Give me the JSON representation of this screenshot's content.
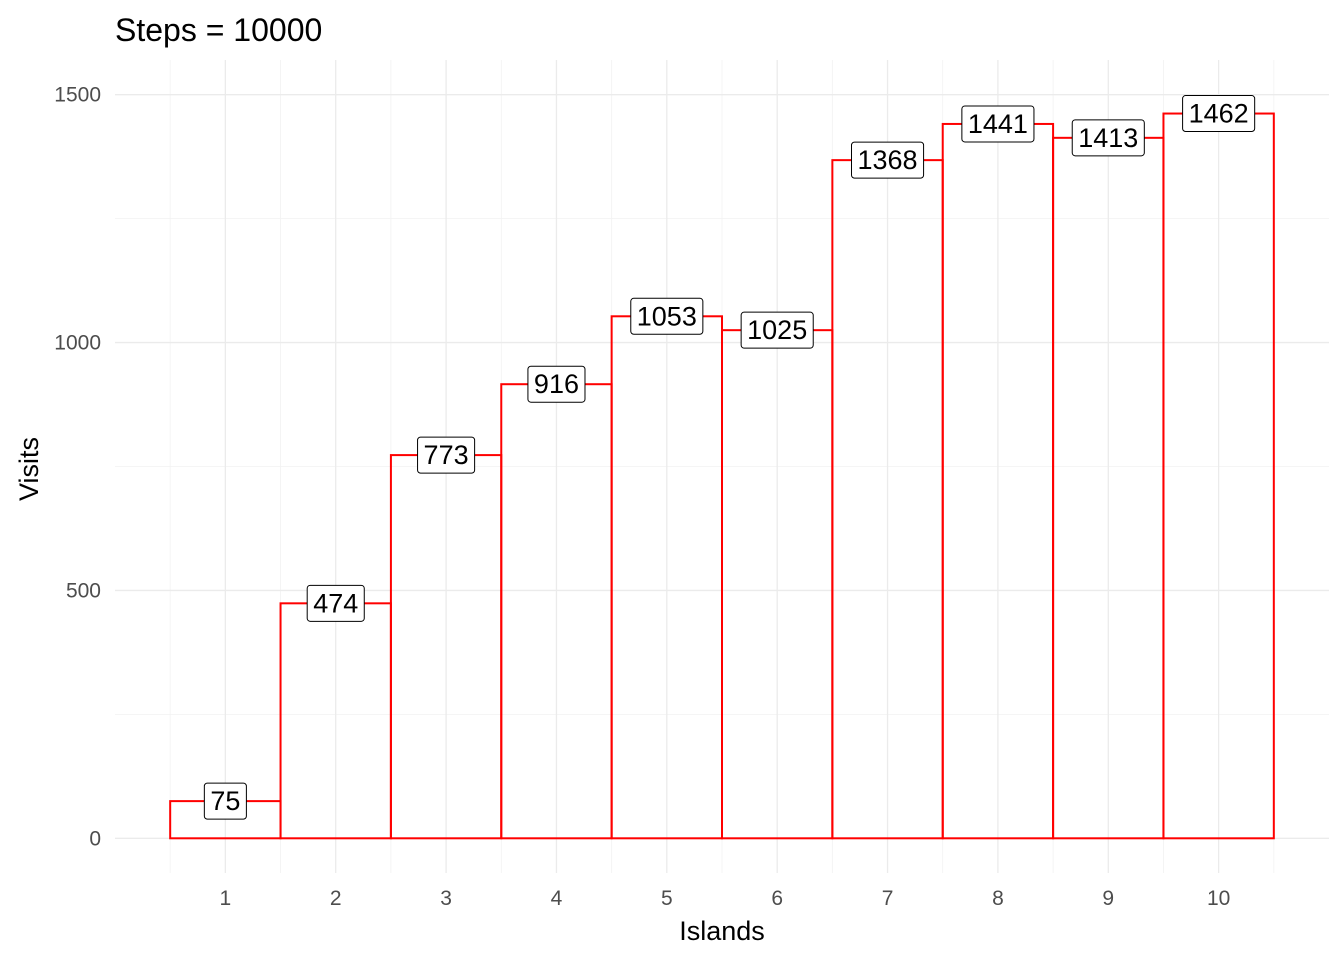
{
  "chart_data": {
    "type": "bar",
    "title": "Steps = 10000",
    "xlabel": "Islands",
    "ylabel": "Visits",
    "categories": [
      "1",
      "2",
      "3",
      "4",
      "5",
      "6",
      "7",
      "8",
      "9",
      "10"
    ],
    "values": [
      75,
      474,
      773,
      916,
      1053,
      1025,
      1368,
      1441,
      1413,
      1462
    ],
    "data_labels": [
      "75",
      "474",
      "773",
      "916",
      "1053",
      "1025",
      "1368",
      "1441",
      "1413",
      "1462"
    ],
    "yticks": [
      0,
      500,
      1000,
      1500
    ],
    "ytick_labels": [
      "0",
      "500",
      "1000",
      "1500"
    ],
    "ylim": [
      -70,
      1570
    ],
    "grid": true,
    "bar_style": "outline",
    "bar_outline_color": "#ff0000",
    "grid_color": "#ebebeb",
    "background": "#ffffff"
  }
}
